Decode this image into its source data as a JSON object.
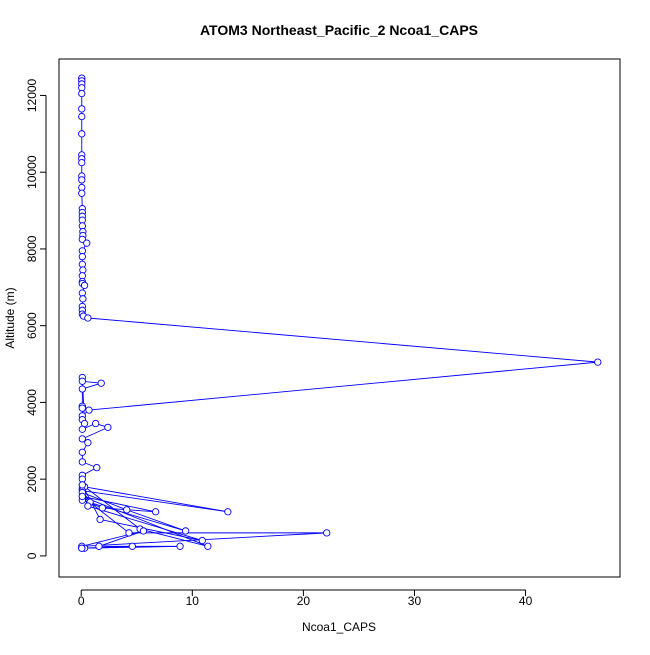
{
  "chart_data": {
    "type": "line",
    "title": "ATOM3 Northeast_Pacific_2 Ncoa1_CAPS",
    "xlabel": "Ncoa1_CAPS",
    "ylabel": "Altitude (m)",
    "xlim": [
      -2,
      48.5
    ],
    "ylim": [
      -550,
      12950
    ],
    "xticks": [
      0,
      10,
      20,
      30,
      40
    ],
    "yticks": [
      0,
      2000,
      4000,
      6000,
      8000,
      10000,
      12000
    ],
    "xtick_labels": [
      "0",
      "10",
      "20",
      "30",
      "40"
    ],
    "ytick_labels": [
      "0",
      "2000",
      "4000",
      "6000",
      "8000",
      "10000",
      "12000"
    ],
    "grid": false,
    "marker": "open-circle",
    "color": "#0000ff",
    "series": [
      {
        "x": [
          0.05,
          0.05,
          0.05,
          0.05,
          0.05,
          0.05,
          0.05,
          0.05,
          0.05,
          0.05,
          0.05,
          0.05,
          0.05,
          0.05,
          0.05,
          0.1,
          0.1,
          0.1,
          0.1,
          0.1,
          0.15,
          0.15,
          0.1,
          0.5,
          0.1,
          0.1,
          0.1,
          0.15,
          0.1,
          0.1,
          0.1,
          0.3,
          0.1,
          0.15,
          0.1,
          0.1,
          0.1,
          0.2,
          0.6,
          46.5,
          0.7,
          0.1,
          0.1,
          0.3,
          0.1,
          0.1,
          1.8,
          0.1,
          0.1,
          0.1,
          0.1,
          1.3,
          2.4,
          0.1,
          0.6,
          0.1,
          0.1,
          1.4,
          0.1,
          0.1,
          0.1,
          0.1,
          0.3,
          13.2,
          0.1,
          0.8,
          0.1,
          6.7,
          1.9,
          0.1,
          9.4,
          4.1,
          0.1,
          0.6,
          10.9,
          1.7,
          0.1,
          5.3,
          11.4,
          0.1,
          4.3,
          22.1,
          0.05,
          5.6,
          1.6,
          8.9,
          0.3,
          4.6,
          0.05,
          0.05
        ],
        "y": [
          12450,
          12380,
          12300,
          12200,
          12050,
          11650,
          11450,
          11000,
          10450,
          10350,
          10250,
          9900,
          9800,
          9600,
          9450,
          9050,
          8950,
          8850,
          8750,
          8600,
          8450,
          8350,
          8250,
          8150,
          7950,
          7800,
          7600,
          7450,
          7300,
          7150,
          7100,
          7050,
          6850,
          6700,
          6500,
          6400,
          6300,
          6250,
          6200,
          5050,
          3800,
          3650,
          3550,
          3450,
          4650,
          4550,
          4500,
          4350,
          3900,
          3850,
          3300,
          3450,
          3350,
          3050,
          2950,
          2700,
          2450,
          2300,
          2100,
          2000,
          1850,
          1750,
          1800,
          1150,
          1700,
          1400,
          1550,
          1150,
          1250,
          1450,
          650,
          1200,
          1650,
          1300,
          400,
          950,
          1850,
          700,
          250,
          1550,
          600,
          600,
          250,
          650,
          250,
          250,
          200,
          250,
          200,
          200
        ]
      }
    ]
  }
}
